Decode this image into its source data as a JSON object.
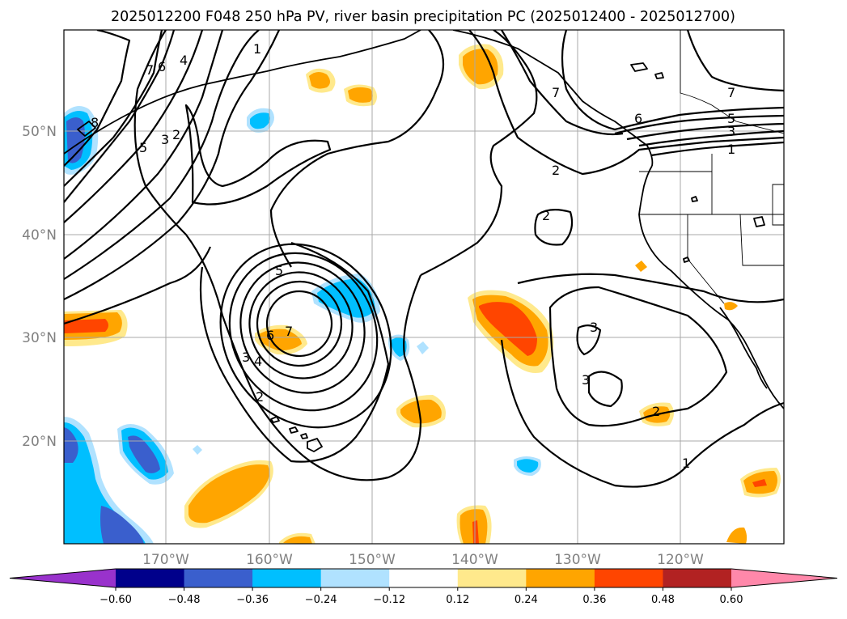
{
  "title": "2025012200 F048 250 hPa PV, river basin precipitation PC (2025012400 - 2025012700)",
  "lat_labels": [
    "50°N",
    "40°N",
    "30°N",
    "20°N"
  ],
  "lon_labels": [
    "170°W",
    "160°W",
    "150°W",
    "140°W",
    "130°W",
    "120°W"
  ],
  "colorbar": {
    "tick_labels": [
      "−0.60",
      "−0.48",
      "−0.36",
      "−0.24",
      "−0.12",
      "0.12",
      "0.24",
      "0.36",
      "0.48",
      "0.60"
    ],
    "colors": [
      "#9932cc",
      "#00008b",
      "#3a5fcd",
      "#00bfff",
      "#b0e2ff",
      "#ffffff",
      "#ffe98c",
      "#ffa500",
      "#ff4500",
      "#b22222",
      "#ff88aa"
    ]
  },
  "contour_labels": {
    "nw_7": "7",
    "nw_6": "6",
    "nw_4": "4",
    "nw_8": "8",
    "nw_5": "5",
    "nw_3": "3",
    "nw_2": "2",
    "nw_1": "1",
    "low_5": "5",
    "low_6": "6",
    "low_7": "7",
    "low_3": "3",
    "low_4": "4",
    "low_2": "2",
    "ne_7": "7",
    "ne_6": "6",
    "ne_5": "5",
    "ne_3": "3",
    "ne_1": "1",
    "ne_2": "2",
    "mid_2": "2",
    "east_3a": "3",
    "east_3b": "3",
    "east_2": "2",
    "east_1": "1"
  }
}
